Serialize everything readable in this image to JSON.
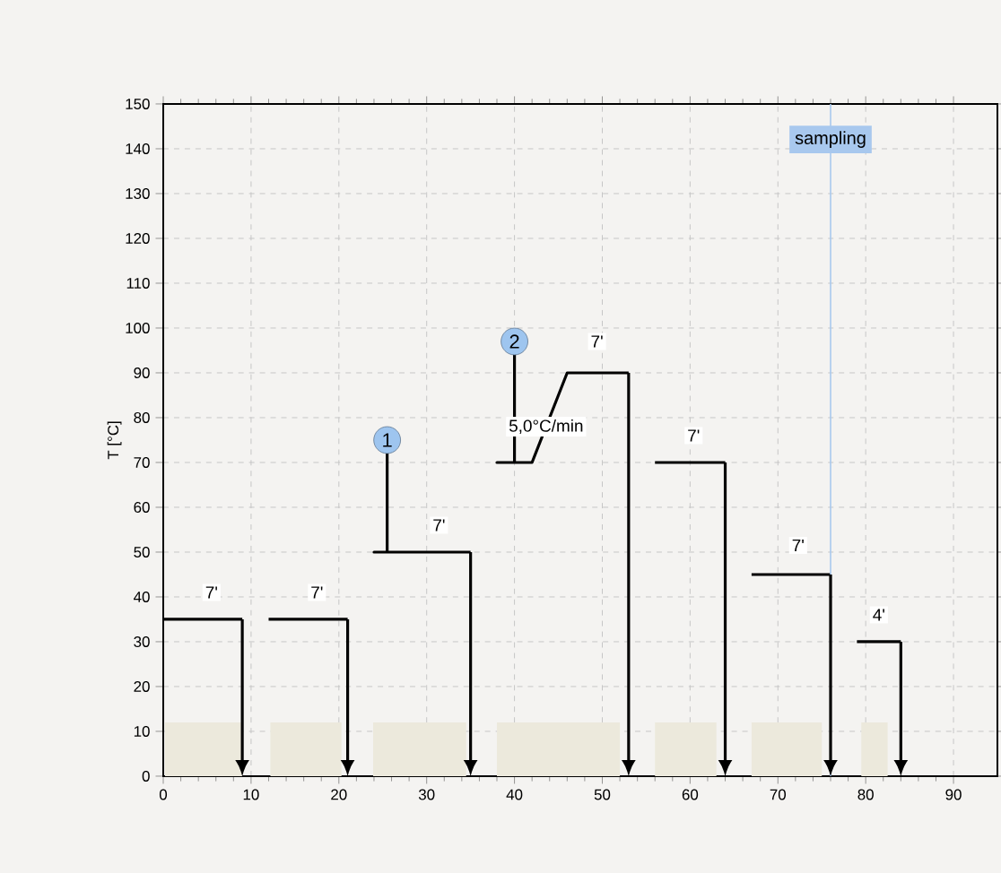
{
  "chart_data": {
    "type": "line",
    "ylabel": "T [°C]",
    "xlim": [
      0,
      95
    ],
    "ylim": [
      0,
      150
    ],
    "xticks": [
      0,
      10,
      20,
      30,
      40,
      50,
      60,
      70,
      80,
      90
    ],
    "yticks": [
      0,
      10,
      20,
      30,
      40,
      50,
      60,
      70,
      80,
      90,
      100,
      110,
      120,
      130,
      140,
      150
    ],
    "grid": true,
    "series": [
      {
        "type": "area",
        "color": "#ece9dc",
        "x": [
          0.2,
          0.2,
          9,
          9
        ],
        "values": [
          0,
          12,
          12,
          0
        ]
      },
      {
        "type": "area",
        "color": "#ece9dc",
        "x": [
          12.2,
          12.2,
          20.3,
          20.3
        ],
        "values": [
          0,
          12,
          12,
          0
        ]
      },
      {
        "type": "area",
        "color": "#ece9dc",
        "x": [
          23.9,
          23.9,
          34.5,
          34.5
        ],
        "values": [
          0,
          12,
          12,
          0
        ]
      },
      {
        "type": "area",
        "color": "#ece9dc",
        "x": [
          38,
          38,
          52,
          52
        ],
        "values": [
          0,
          12,
          12,
          0
        ]
      },
      {
        "type": "area",
        "color": "#ece9dc",
        "x": [
          56,
          56,
          63,
          63
        ],
        "values": [
          0,
          12,
          12,
          0
        ]
      },
      {
        "type": "area",
        "color": "#ece9dc",
        "x": [
          67,
          67,
          75,
          75
        ],
        "values": [
          0,
          12,
          12,
          0
        ]
      },
      {
        "type": "area",
        "color": "#ece9dc",
        "x": [
          79.5,
          79.5,
          82.5,
          82.5
        ],
        "values": [
          0,
          12,
          12,
          0
        ]
      },
      {
        "color": "#000000",
        "x": [
          0,
          9
        ],
        "values": [
          35,
          35
        ]
      },
      {
        "color": "#000000",
        "x": [
          12,
          21
        ],
        "values": [
          35,
          35
        ]
      },
      {
        "color": "#000000",
        "x": [
          25.5,
          25.5,
          24,
          35
        ],
        "values": [
          75,
          50,
          50,
          50
        ]
      },
      {
        "color": "#000000",
        "x": [
          40,
          40,
          38,
          42,
          46,
          53
        ],
        "values": [
          97,
          70,
          70,
          70,
          90,
          90
        ]
      },
      {
        "color": "#000000",
        "x": [
          56,
          64
        ],
        "values": [
          70,
          70
        ]
      },
      {
        "color": "#000000",
        "x": [
          67,
          76
        ],
        "values": [
          45,
          45
        ]
      },
      {
        "color": "#000000",
        "x": [
          79,
          84
        ],
        "values": [
          30,
          30
        ]
      },
      {
        "type": "scatter",
        "name": "1",
        "color": "#9ec5ef",
        "marker": "circle",
        "x": [
          25.5
        ],
        "values": [
          75
        ]
      },
      {
        "type": "scatter",
        "name": "2",
        "color": "#9ec5ef",
        "marker": "circle",
        "x": [
          40
        ],
        "values": [
          97
        ]
      }
    ],
    "ref_lines": [
      {
        "axis": "x",
        "value": 76,
        "label": "sampling",
        "color": "#a8c8ee"
      }
    ],
    "annotations": [
      {
        "text": "7'",
        "x": 5.5,
        "y": 41
      },
      {
        "text": "7'",
        "x": 17.5,
        "y": 41
      },
      {
        "text": "7'",
        "x": 31.4,
        "y": 56
      },
      {
        "text": "5,0°C/min",
        "x": 43.6,
        "y": 78
      },
      {
        "text": "7'",
        "x": 49.4,
        "y": 97
      },
      {
        "text": "7'",
        "x": 60.4,
        "y": 76
      },
      {
        "text": "7'",
        "x": 72.3,
        "y": 51.5
      },
      {
        "text": "4'",
        "x": 81.5,
        "y": 36
      }
    ]
  }
}
